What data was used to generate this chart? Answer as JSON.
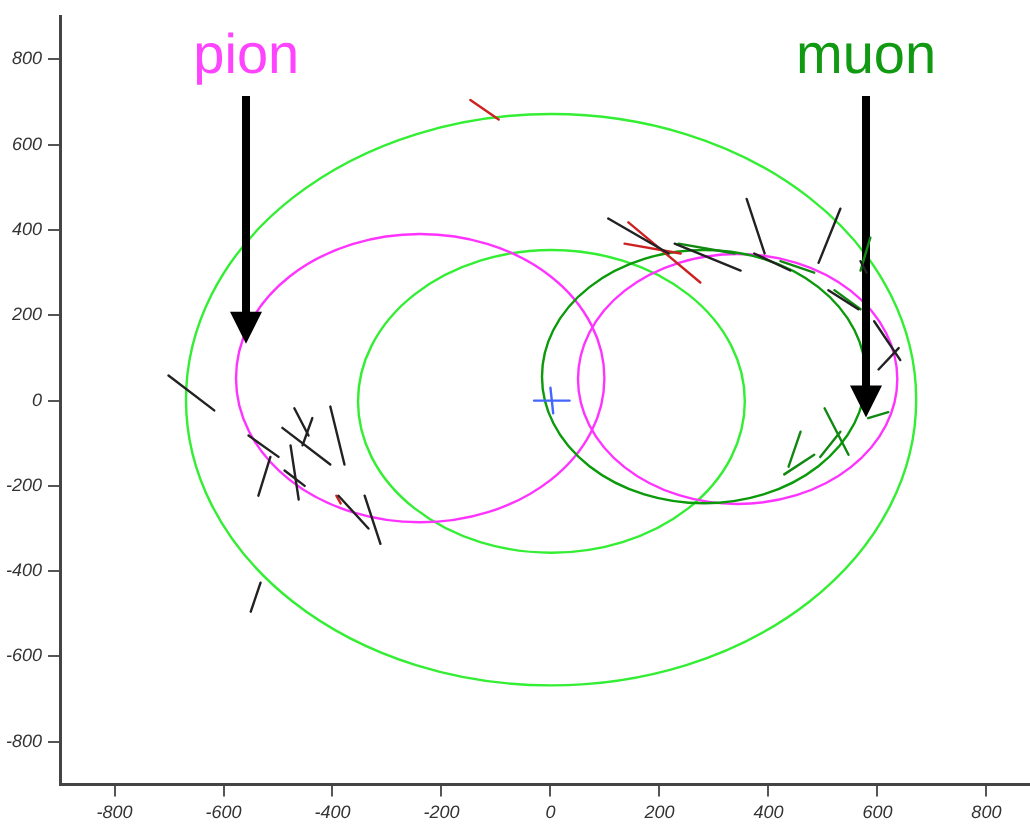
{
  "chart_data": {
    "type": "line",
    "xlim": [
      -900,
      880
    ],
    "ylim": [
      -900,
      900
    ],
    "xticks": [
      -800,
      -600,
      -400,
      -200,
      0,
      200,
      400,
      600,
      800
    ],
    "yticks": [
      -800,
      -600,
      -400,
      -200,
      0,
      200,
      400,
      600,
      800
    ],
    "annotations": [
      "pion",
      "muon"
    ],
    "series": [
      {
        "color": "#222222",
        "x": [
          -701,
          -617
        ],
        "values": [
          59,
          -23
        ]
      },
      {
        "color": "#222222",
        "x": [
          -470,
          -444
        ],
        "values": [
          -18,
          -82
        ]
      },
      {
        "color": "#222222",
        "x": [
          -437,
          -455
        ],
        "values": [
          -41,
          -105
        ]
      },
      {
        "color": "#222222",
        "x": [
          -492,
          -404
        ],
        "values": [
          -64,
          -150
        ]
      },
      {
        "color": "#222222",
        "x": [
          -404,
          -378
        ],
        "values": [
          -14,
          -150
        ]
      },
      {
        "color": "#222222",
        "x": [
          -554,
          -499
        ],
        "values": [
          -82,
          -132
        ]
      },
      {
        "color": "#222222",
        "x": [
          -536,
          -514
        ],
        "values": [
          -223,
          -132
        ]
      },
      {
        "color": "#222222",
        "x": [
          -477,
          -462
        ],
        "values": [
          -105,
          -232
        ]
      },
      {
        "color": "#222222",
        "x": [
          -488,
          -451
        ],
        "values": [
          -164,
          -200
        ]
      },
      {
        "color": "#222222",
        "x": [
          -389,
          -334
        ],
        "values": [
          -223,
          -300
        ]
      },
      {
        "color": "#222222",
        "x": [
          -341,
          -312
        ],
        "values": [
          -223,
          -336
        ]
      },
      {
        "color": "#222222",
        "x": [
          -532,
          -550
        ],
        "values": [
          -427,
          -495
        ]
      },
      {
        "color": "#222222",
        "x": [
          106,
          217
        ],
        "values": [
          427,
          345
        ]
      },
      {
        "color": "#222222",
        "x": [
          228,
          349
        ],
        "values": [
          368,
          305
        ]
      },
      {
        "color": "#222222",
        "x": [
          360,
          393
        ],
        "values": [
          473,
          345
        ]
      },
      {
        "color": "#222222",
        "x": [
          532,
          492
        ],
        "values": [
          450,
          323
        ]
      },
      {
        "color": "#222222",
        "x": [
          374,
          440
        ],
        "values": [
          345,
          305
        ]
      },
      {
        "color": "#222222",
        "x": [
          510,
          565
        ],
        "values": [
          259,
          214
        ]
      },
      {
        "color": "#222222",
        "x": [
          594,
          642
        ],
        "values": [
          186,
          95
        ]
      },
      {
        "color": "#222222",
        "x": [
          602,
          639
        ],
        "values": [
          73,
          123
        ]
      },
      {
        "color": "#222222",
        "x": [
          569,
          580
        ],
        "values": [
          327,
          300
        ]
      },
      {
        "color": "#cc2222",
        "x": [
          -147,
          -95
        ],
        "values": [
          705,
          659
        ]
      },
      {
        "color": "#cc2222",
        "x": [
          143,
          275
        ],
        "values": [
          418,
          277
        ]
      },
      {
        "color": "#cc2222",
        "x": [
          136,
          239
        ],
        "values": [
          368,
          345
        ]
      },
      {
        "color": "#cc2222",
        "x": [
          -393,
          -385
        ],
        "values": [
          -223,
          -241
        ]
      },
      {
        "color": "#118811",
        "x": [
          235,
          338
        ],
        "values": [
          368,
          345
        ]
      },
      {
        "color": "#118811",
        "x": [
          422,
          484
        ],
        "values": [
          327,
          300
        ]
      },
      {
        "color": "#118811",
        "x": [
          521,
          569
        ],
        "values": [
          259,
          214
        ]
      },
      {
        "color": "#118811",
        "x": [
          587,
          569
        ],
        "values": [
          382,
          305
        ]
      },
      {
        "color": "#118811",
        "x": [
          459,
          437
        ],
        "values": [
          -73,
          -155
        ]
      },
      {
        "color": "#118811",
        "x": [
          484,
          429
        ],
        "values": [
          -127,
          -173
        ]
      },
      {
        "color": "#118811",
        "x": [
          503,
          547
        ],
        "values": [
          -18,
          -127
        ]
      },
      {
        "color": "#118811",
        "x": [
          532,
          495
        ],
        "values": [
          -73,
          -132
        ]
      },
      {
        "color": "#118811",
        "x": [
          583,
          620
        ],
        "values": [
          -41,
          -27
        ]
      },
      {
        "color": "#4466ff",
        "x": [
          -30,
          35
        ],
        "values": [
          0,
          0
        ]
      },
      {
        "color": "#4466ff",
        "x": [
          0,
          5
        ],
        "values": [
          30,
          -30
        ]
      }
    ]
  }
}
